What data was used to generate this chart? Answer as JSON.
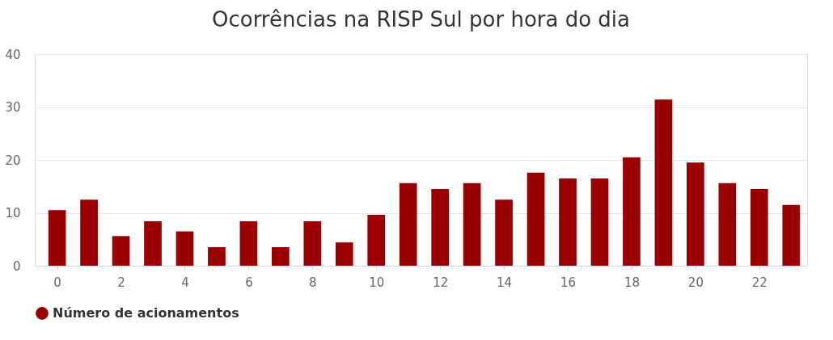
{
  "chart_data": {
    "type": "bar",
    "title": "Ocorrências na RISP Sul por hora do dia",
    "x": [
      0,
      1,
      2,
      3,
      4,
      5,
      6,
      7,
      8,
      9,
      10,
      11,
      12,
      13,
      14,
      15,
      16,
      17,
      18,
      19,
      20,
      21,
      22,
      23
    ],
    "series": [
      {
        "name": "Número de acionamentos",
        "color": "#9b0000",
        "values": [
          10.5,
          12.5,
          5.6,
          8.4,
          6.5,
          3.5,
          8.4,
          3.5,
          8.4,
          4.4,
          9.6,
          15.6,
          14.5,
          15.6,
          12.5,
          17.6,
          16.5,
          16.5,
          20.5,
          31.4,
          19.5,
          15.6,
          14.5,
          11.5
        ]
      }
    ],
    "xlim": [
      -0.7,
      23.5
    ],
    "xticks": [
      0,
      2,
      4,
      6,
      8,
      10,
      12,
      14,
      16,
      18,
      20,
      22
    ],
    "ylim": [
      0,
      40
    ],
    "yticks": [
      0,
      10,
      20,
      30,
      40
    ],
    "grid": "y",
    "legend": "bottom"
  }
}
